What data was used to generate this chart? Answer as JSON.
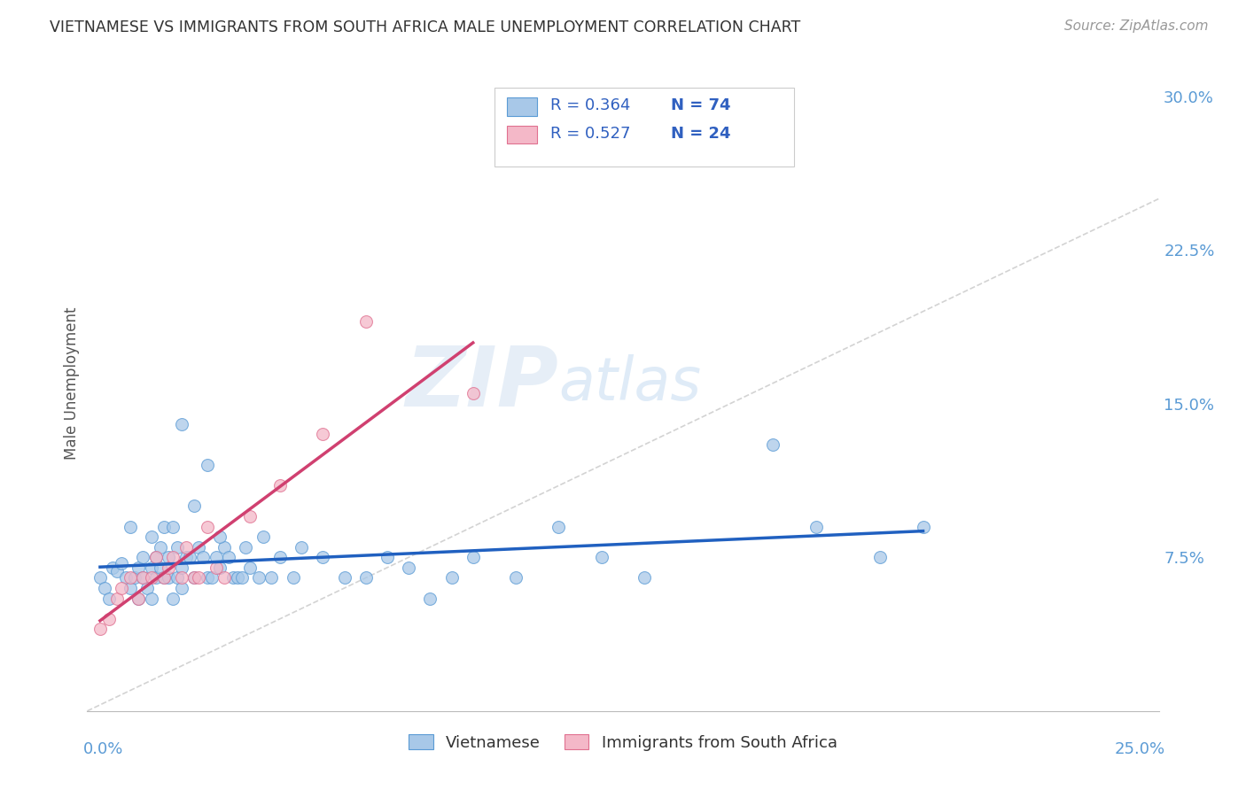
{
  "title": "VIETNAMESE VS IMMIGRANTS FROM SOUTH AFRICA MALE UNEMPLOYMENT CORRELATION CHART",
  "source": "Source: ZipAtlas.com",
  "ylabel": "Male Unemployment",
  "ytick_values": [
    0.0,
    0.075,
    0.15,
    0.225,
    0.3
  ],
  "ytick_labels": [
    "",
    "7.5%",
    "15.0%",
    "22.5%",
    "30.0%"
  ],
  "xlim": [
    0.0,
    0.25
  ],
  "ylim": [
    0.0,
    0.32
  ],
  "watermark_zip": "ZIP",
  "watermark_atlas": "atlas",
  "legend_r1": "R = 0.364",
  "legend_n1": "N = 74",
  "legend_r2": "R = 0.527",
  "legend_n2": "N = 24",
  "color_blue_fill": "#a8c8e8",
  "color_blue_edge": "#5b9bd5",
  "color_pink_fill": "#f4b8c8",
  "color_pink_edge": "#e07090",
  "color_trendline_blue": "#2060c0",
  "color_trendline_pink": "#d04070",
  "color_diagonal": "#c8c8c8",
  "color_grid": "#e0e8f0",
  "color_r_n": "#3060c0",
  "label_color": "#5b9bd5",
  "background_color": "#ffffff",
  "viet_x": [
    0.003,
    0.004,
    0.005,
    0.006,
    0.007,
    0.008,
    0.009,
    0.01,
    0.01,
    0.011,
    0.012,
    0.012,
    0.013,
    0.013,
    0.014,
    0.015,
    0.015,
    0.015,
    0.016,
    0.016,
    0.017,
    0.017,
    0.018,
    0.018,
    0.019,
    0.019,
    0.02,
    0.02,
    0.021,
    0.021,
    0.022,
    0.022,
    0.023,
    0.024,
    0.025,
    0.026,
    0.027,
    0.028,
    0.029,
    0.03,
    0.031,
    0.032,
    0.033,
    0.034,
    0.035,
    0.036,
    0.037,
    0.038,
    0.04,
    0.041,
    0.043,
    0.045,
    0.048,
    0.05,
    0.055,
    0.06,
    0.065,
    0.07,
    0.075,
    0.08,
    0.085,
    0.09,
    0.1,
    0.11,
    0.12,
    0.13,
    0.16,
    0.17,
    0.185,
    0.195,
    0.022,
    0.025,
    0.028,
    0.031
  ],
  "viet_y": [
    0.065,
    0.06,
    0.055,
    0.07,
    0.068,
    0.072,
    0.065,
    0.09,
    0.06,
    0.065,
    0.07,
    0.055,
    0.075,
    0.065,
    0.06,
    0.055,
    0.07,
    0.085,
    0.065,
    0.075,
    0.07,
    0.08,
    0.065,
    0.09,
    0.065,
    0.075,
    0.055,
    0.09,
    0.065,
    0.08,
    0.07,
    0.06,
    0.075,
    0.075,
    0.065,
    0.08,
    0.075,
    0.065,
    0.065,
    0.075,
    0.07,
    0.08,
    0.075,
    0.065,
    0.065,
    0.065,
    0.08,
    0.07,
    0.065,
    0.085,
    0.065,
    0.075,
    0.065,
    0.08,
    0.075,
    0.065,
    0.065,
    0.075,
    0.07,
    0.055,
    0.065,
    0.075,
    0.065,
    0.09,
    0.075,
    0.065,
    0.13,
    0.09,
    0.075,
    0.09,
    0.14,
    0.1,
    0.12,
    0.085
  ],
  "sa_x": [
    0.003,
    0.005,
    0.007,
    0.008,
    0.01,
    0.012,
    0.013,
    0.015,
    0.016,
    0.018,
    0.019,
    0.02,
    0.022,
    0.023,
    0.025,
    0.026,
    0.028,
    0.03,
    0.032,
    0.038,
    0.045,
    0.055,
    0.065,
    0.09
  ],
  "sa_y": [
    0.04,
    0.045,
    0.055,
    0.06,
    0.065,
    0.055,
    0.065,
    0.065,
    0.075,
    0.065,
    0.07,
    0.075,
    0.065,
    0.08,
    0.065,
    0.065,
    0.09,
    0.07,
    0.065,
    0.095,
    0.11,
    0.135,
    0.19,
    0.155
  ]
}
